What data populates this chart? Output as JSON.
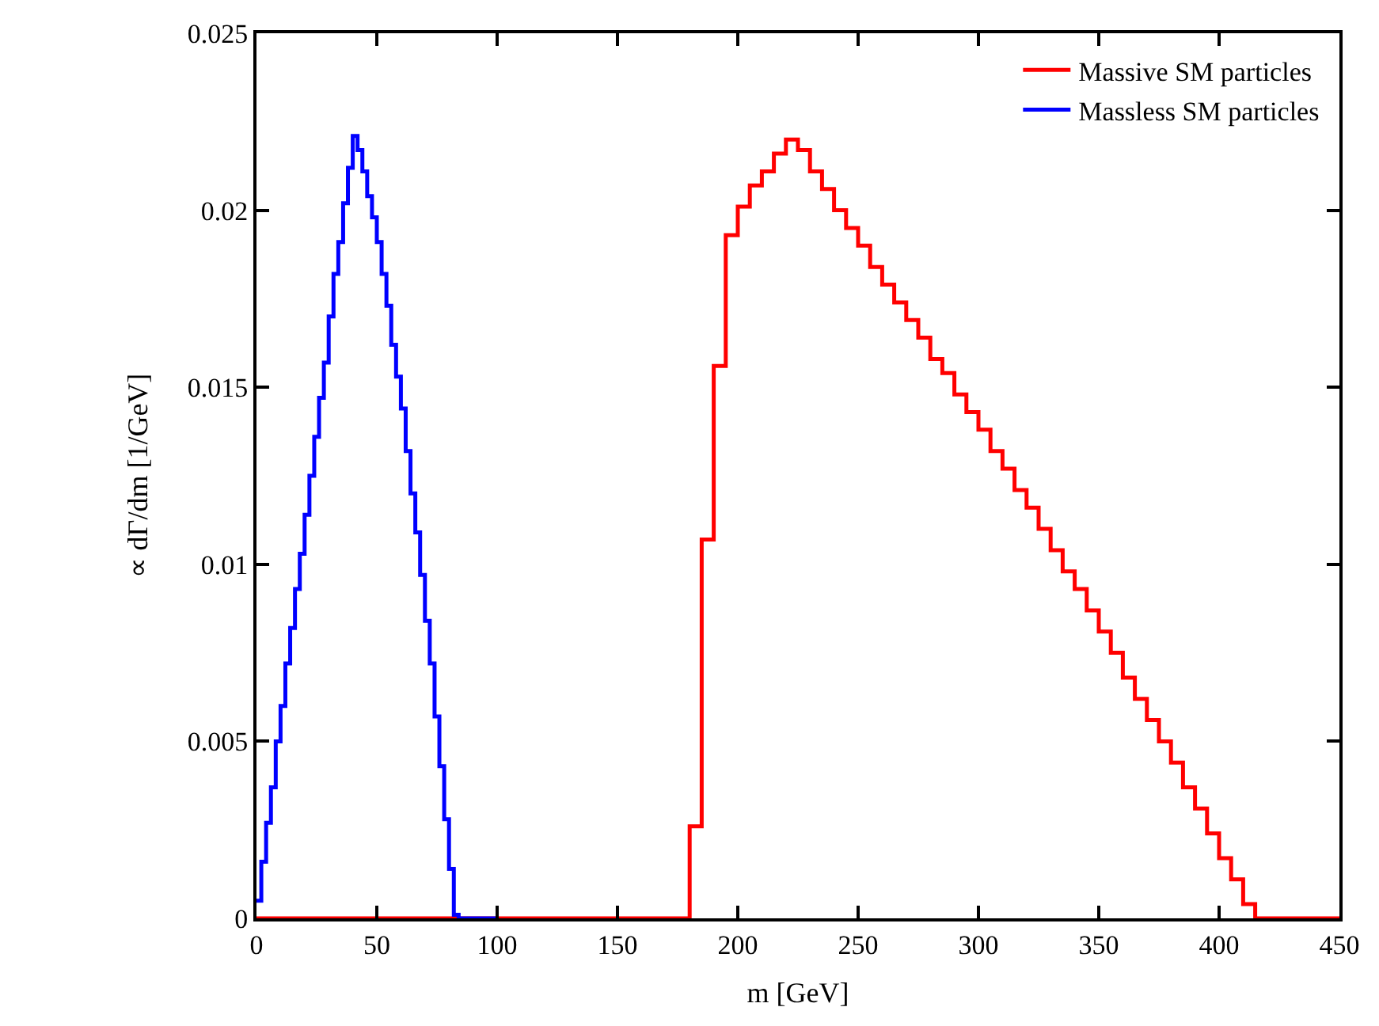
{
  "chart_data": {
    "type": "step",
    "xlabel": "m [GeV]",
    "ylabel": "∝ dΓ/dm [1/GeV]",
    "xlim": [
      0,
      450
    ],
    "xticks": [
      0,
      50,
      100,
      150,
      200,
      250,
      300,
      350,
      400,
      450
    ],
    "ylim": [
      0,
      0.025
    ],
    "yticks": [
      0,
      0.005,
      0.01,
      0.015,
      0.02,
      0.025
    ],
    "legend": "top right",
    "series": [
      {
        "name": "Massive SM particles",
        "color": "#ff0000",
        "x": [
          0,
          5,
          10,
          15,
          20,
          25,
          30,
          35,
          40,
          45,
          50,
          55,
          60,
          65,
          70,
          75,
          80,
          85,
          90,
          95,
          100,
          105,
          110,
          115,
          120,
          125,
          130,
          135,
          140,
          145,
          150,
          155,
          160,
          165,
          170,
          175,
          180,
          185,
          190,
          195,
          200,
          205,
          210,
          215,
          220,
          225,
          230,
          235,
          240,
          245,
          250,
          255,
          260,
          265,
          270,
          275,
          280,
          285,
          290,
          295,
          300,
          305,
          310,
          315,
          320,
          325,
          330,
          335,
          340,
          345,
          350,
          355,
          360,
          365,
          370,
          375,
          380,
          385,
          390,
          395,
          400,
          405,
          410,
          415,
          420,
          425,
          430,
          435,
          440,
          445,
          450
        ],
        "values": [
          0,
          0,
          0,
          0,
          0,
          0,
          0,
          0,
          0,
          0,
          0,
          0,
          0,
          0,
          0,
          0,
          0,
          0,
          0,
          0,
          0,
          0,
          0,
          0,
          0,
          0,
          0,
          0,
          0,
          0,
          0,
          0,
          0,
          0,
          0,
          0,
          0.0026,
          0.0107,
          0.0156,
          0.0193,
          0.0201,
          0.0207,
          0.0211,
          0.0216,
          0.022,
          0.0217,
          0.0211,
          0.0206,
          0.02,
          0.0195,
          0.019,
          0.0184,
          0.0179,
          0.0174,
          0.0169,
          0.0164,
          0.0158,
          0.0154,
          0.0148,
          0.0143,
          0.0138,
          0.0132,
          0.0127,
          0.0121,
          0.0116,
          0.011,
          0.0104,
          0.0098,
          0.0093,
          0.0087,
          0.0081,
          0.0075,
          0.0068,
          0.0062,
          0.0056,
          0.005,
          0.0044,
          0.0037,
          0.0031,
          0.0024,
          0.0017,
          0.0011,
          0.0004,
          0,
          0,
          0,
          0,
          0,
          0,
          0,
          0
        ]
      },
      {
        "name": "Massless SM particles",
        "color": "#0000ff",
        "x": [
          0,
          2,
          4,
          6,
          8,
          10,
          12,
          14,
          16,
          18,
          20,
          22,
          24,
          26,
          28,
          30,
          32,
          34,
          36,
          38,
          40,
          42,
          44,
          46,
          48,
          50,
          52,
          54,
          56,
          58,
          60,
          62,
          64,
          66,
          68,
          70,
          72,
          74,
          76,
          78,
          80,
          82,
          84,
          86,
          88,
          90,
          92,
          94,
          96,
          98,
          100
        ],
        "values": [
          0.0005,
          0.0016,
          0.0027,
          0.0037,
          0.005,
          0.006,
          0.0072,
          0.0082,
          0.0093,
          0.0103,
          0.0114,
          0.0125,
          0.0136,
          0.0147,
          0.0157,
          0.017,
          0.0182,
          0.0191,
          0.0202,
          0.0212,
          0.0221,
          0.0217,
          0.0211,
          0.0204,
          0.0198,
          0.0191,
          0.0182,
          0.0173,
          0.0162,
          0.0153,
          0.0144,
          0.0132,
          0.012,
          0.0109,
          0.0097,
          0.0084,
          0.0072,
          0.0057,
          0.0043,
          0.0028,
          0.0014,
          0.0001,
          0,
          0,
          0,
          0,
          0,
          0,
          0,
          0,
          0
        ]
      }
    ]
  }
}
